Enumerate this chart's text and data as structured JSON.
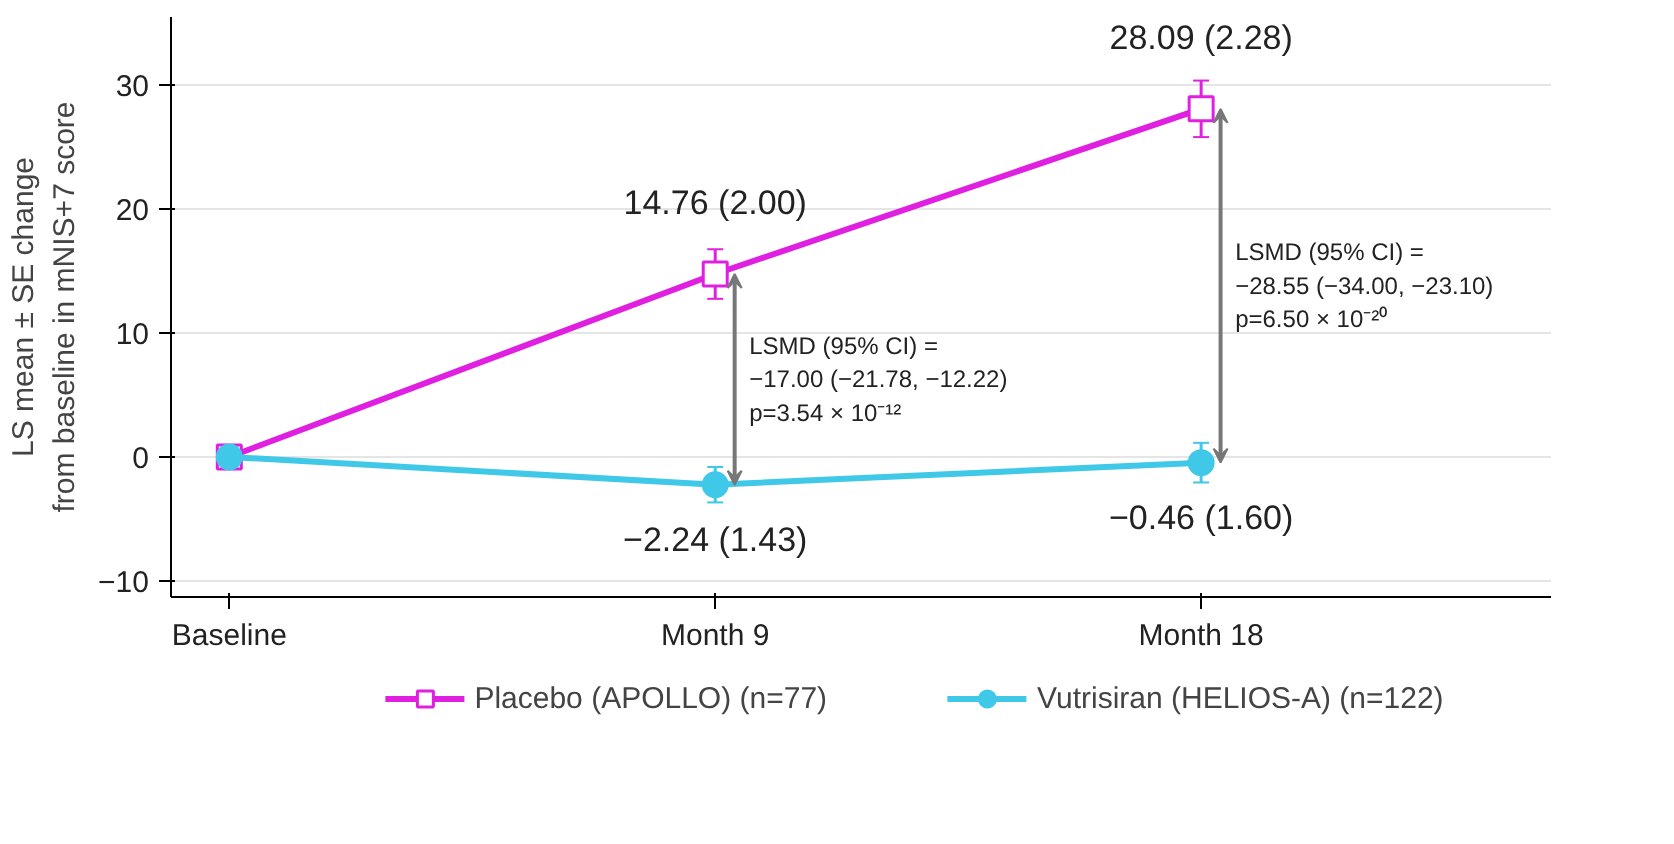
{
  "chart_data": {
    "type": "line",
    "ylabel": "LS mean ± SE change\nfrom baseline in mNIS+7 score",
    "categories": [
      "Baseline",
      "Month 9",
      "Month 18"
    ],
    "series": [
      {
        "name": "Placebo (APOLLO) (n=77)",
        "color": "#e020e0",
        "marker": "square",
        "values": [
          0,
          14.76,
          28.09
        ],
        "errors": [
          null,
          2.0,
          2.28
        ],
        "value_labels": [
          null,
          "14.76 (2.00)",
          "28.09 (2.28)"
        ]
      },
      {
        "name": "Vutrisiran (HELIOS-A) (n=122)",
        "color": "#40c8e8",
        "marker": "circle",
        "values": [
          0,
          -2.24,
          -0.46
        ],
        "errors": [
          null,
          1.43,
          1.6
        ],
        "value_labels": [
          null,
          "−2.24 (1.43)",
          "−0.46 (1.60)"
        ]
      }
    ],
    "annotations": [
      "LSMD (95% CI) =\n−17.00 (−21.78, −12.22)\np=3.54 × 10⁻¹²",
      "LSMD (95% CI) =\n−28.55 (−34.00, −23.10)\np=6.50 × 10⁻²⁰"
    ],
    "ylim": [
      -11.3,
      35.5
    ],
    "yticks": [
      -10,
      0,
      10,
      20,
      30
    ],
    "grid": "y",
    "legend": "bottom",
    "line_style": "solid"
  }
}
